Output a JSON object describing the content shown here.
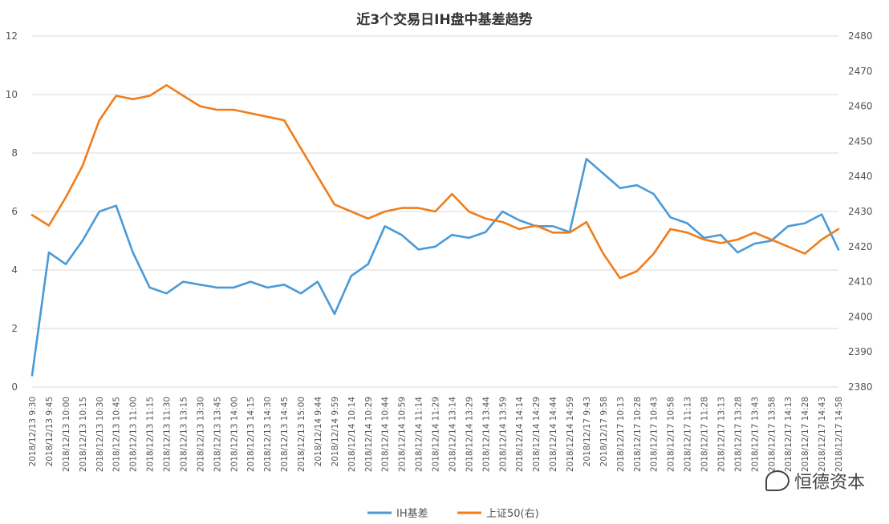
{
  "chart_data": {
    "type": "line",
    "title": "近3个交易日IH盘中基差趋势",
    "y_left": {
      "min": 0,
      "max": 12,
      "ticks": [
        0,
        2,
        4,
        6,
        8,
        10,
        12
      ]
    },
    "y_right": {
      "min": 2380,
      "max": 2480,
      "ticks": [
        2380,
        2390,
        2400,
        2410,
        2420,
        2430,
        2440,
        2450,
        2460,
        2470,
        2480
      ]
    },
    "grid": true,
    "legend_position": "bottom-center",
    "x_labels": [
      "2018/12/13 9:30",
      "2018/12/13 9:45",
      "2018/12/13 10:00",
      "2018/12/13 10:15",
      "2018/12/13 10:30",
      "2018/12/13 10:45",
      "2018/12/13 11:00",
      "2018/12/13 11:15",
      "2018/12/13 11:30",
      "2018/12/13 13:15",
      "2018/12/13 13:30",
      "2018/12/13 13:45",
      "2018/12/13 14:00",
      "2018/12/13 14:15",
      "2018/12/13 14:30",
      "2018/12/13 14:45",
      "2018/12/13 15:00",
      "2018/12/14 9:44",
      "2018/12/14 9:59",
      "2018/12/14 10:14",
      "2018/12/14 10:29",
      "2018/12/14 10:44",
      "2018/12/14 10:59",
      "2018/12/14 11:14",
      "2018/12/14 11:29",
      "2018/12/14 13:14",
      "2018/12/14 13:29",
      "2018/12/14 13:44",
      "2018/12/14 13:59",
      "2018/12/14 14:14",
      "2018/12/14 14:29",
      "2018/12/14 14:44",
      "2018/12/14 14:59",
      "2018/12/17 9:43",
      "2018/12/17 9:58",
      "2018/12/17 10:13",
      "2018/12/17 10:28",
      "2018/12/17 10:43",
      "2018/12/17 10:58",
      "2018/12/17 11:13",
      "2018/12/17 11:28",
      "2018/12/17 13:13",
      "2018/12/17 13:28",
      "2018/12/17 13:43",
      "2018/12/17 13:58",
      "2018/12/17 14:13",
      "2018/12/17 14:28",
      "2018/12/17 14:43",
      "2018/12/17 14:58"
    ],
    "series": [
      {
        "name": "IH基差",
        "axis": "left",
        "color": "#4a9ad8",
        "values": [
          0.4,
          4.6,
          4.2,
          5.0,
          6.0,
          6.2,
          4.6,
          3.4,
          3.2,
          3.6,
          3.5,
          3.4,
          3.4,
          3.6,
          3.4,
          3.5,
          3.2,
          3.6,
          2.5,
          3.8,
          4.2,
          5.5,
          5.2,
          4.7,
          4.8,
          5.2,
          5.1,
          5.3,
          6.0,
          5.7,
          5.5,
          5.5,
          5.3,
          7.8,
          7.3,
          6.8,
          6.9,
          6.6,
          5.8,
          5.6,
          5.1,
          5.2,
          4.6,
          4.9,
          5.0,
          5.5,
          5.6,
          5.9,
          4.7
        ]
      },
      {
        "name": "上证50(右)",
        "axis": "right",
        "color": "#f07d1a",
        "values": [
          2429,
          2426,
          2434,
          2443,
          2456,
          2463,
          2462,
          2463,
          2466,
          2463,
          2460,
          2459,
          2459,
          2458,
          2457,
          2456,
          2448,
          2440,
          2432,
          2430,
          2428,
          2430,
          2431,
          2431,
          2430,
          2435,
          2430,
          2428,
          2427,
          2425,
          2426,
          2424,
          2424,
          2427,
          2418,
          2411,
          2413,
          2418,
          2425,
          2424,
          2422,
          2421,
          2422,
          2424,
          2422,
          2420,
          2418,
          2422,
          2425
        ]
      }
    ]
  },
  "legend": [
    {
      "name": "IH基差",
      "color": "#4a9ad8"
    },
    {
      "name": "上证50(右)",
      "color": "#f07d1a"
    }
  ],
  "watermark": {
    "text": "恒德资本",
    "icon": "wechat-icon"
  }
}
